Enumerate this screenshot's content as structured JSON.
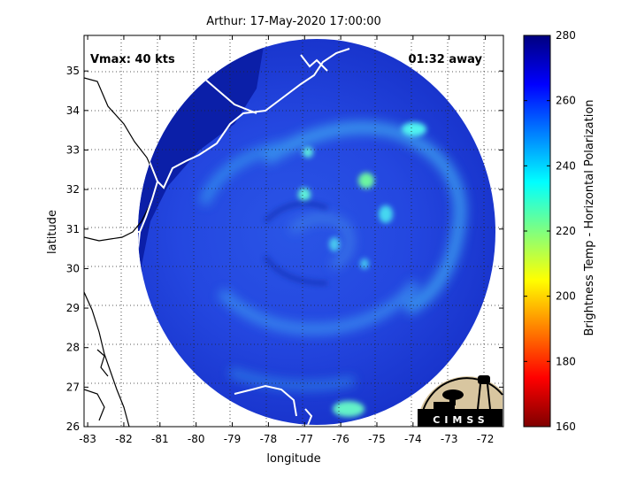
{
  "title": "Arthur: 17-May-2020 17:00:00",
  "vmax_label": "Vmax: 40 kts",
  "time_away_label": "01:32 away",
  "xlabel": "longitude",
  "ylabel": "latitude",
  "colorbar_label": "Brightness Temp - Horizontal Polarization",
  "logo_text": "CIMSS",
  "x_ticks": [
    "-83",
    "-82",
    "-81",
    "-80",
    "-79",
    "-78",
    "-77",
    "-76",
    "-75",
    "-74",
    "-73",
    "-72"
  ],
  "y_ticks": [
    "26",
    "27",
    "28",
    "29",
    "30",
    "31",
    "32",
    "33",
    "34",
    "35"
  ],
  "colorbar_ticks": [
    "160",
    "180",
    "200",
    "220",
    "240",
    "260",
    "280"
  ],
  "colors": {
    "cold_end": "#7a0000",
    "warm_end": "#00007f",
    "background_scene": "#1a2fd6",
    "coastline": "#ffffff",
    "land_border": "#000000"
  },
  "chart_data": {
    "type": "heatmap",
    "title": "Arthur: 17-May-2020 17:00:00",
    "xlabel": "longitude",
    "ylabel": "latitude",
    "xlim": [
      -83.1,
      -71.5
    ],
    "ylim": [
      26,
      35.9
    ],
    "clim": [
      160,
      280
    ],
    "colorbar_label": "Brightness Temp - Horizontal Polarization",
    "colormap": "jet",
    "grid": true,
    "swath_center": [
      -77.3,
      30.9
    ],
    "storm_center": [
      -77.0,
      30.6
    ],
    "features": [
      {
        "description": "cold band",
        "lon": -74.7,
        "lat": 33.5,
        "value": 236
      },
      {
        "description": "cold band",
        "lon": -76.2,
        "lat": 32.2,
        "value": 230
      },
      {
        "description": "cold band",
        "lon": -77.5,
        "lat": 32.0,
        "value": 238
      },
      {
        "description": "cold band",
        "lon": -75.9,
        "lat": 26.3,
        "value": 232
      },
      {
        "description": "eye region",
        "lon": -77.0,
        "lat": 30.7,
        "value": 262
      }
    ]
  }
}
